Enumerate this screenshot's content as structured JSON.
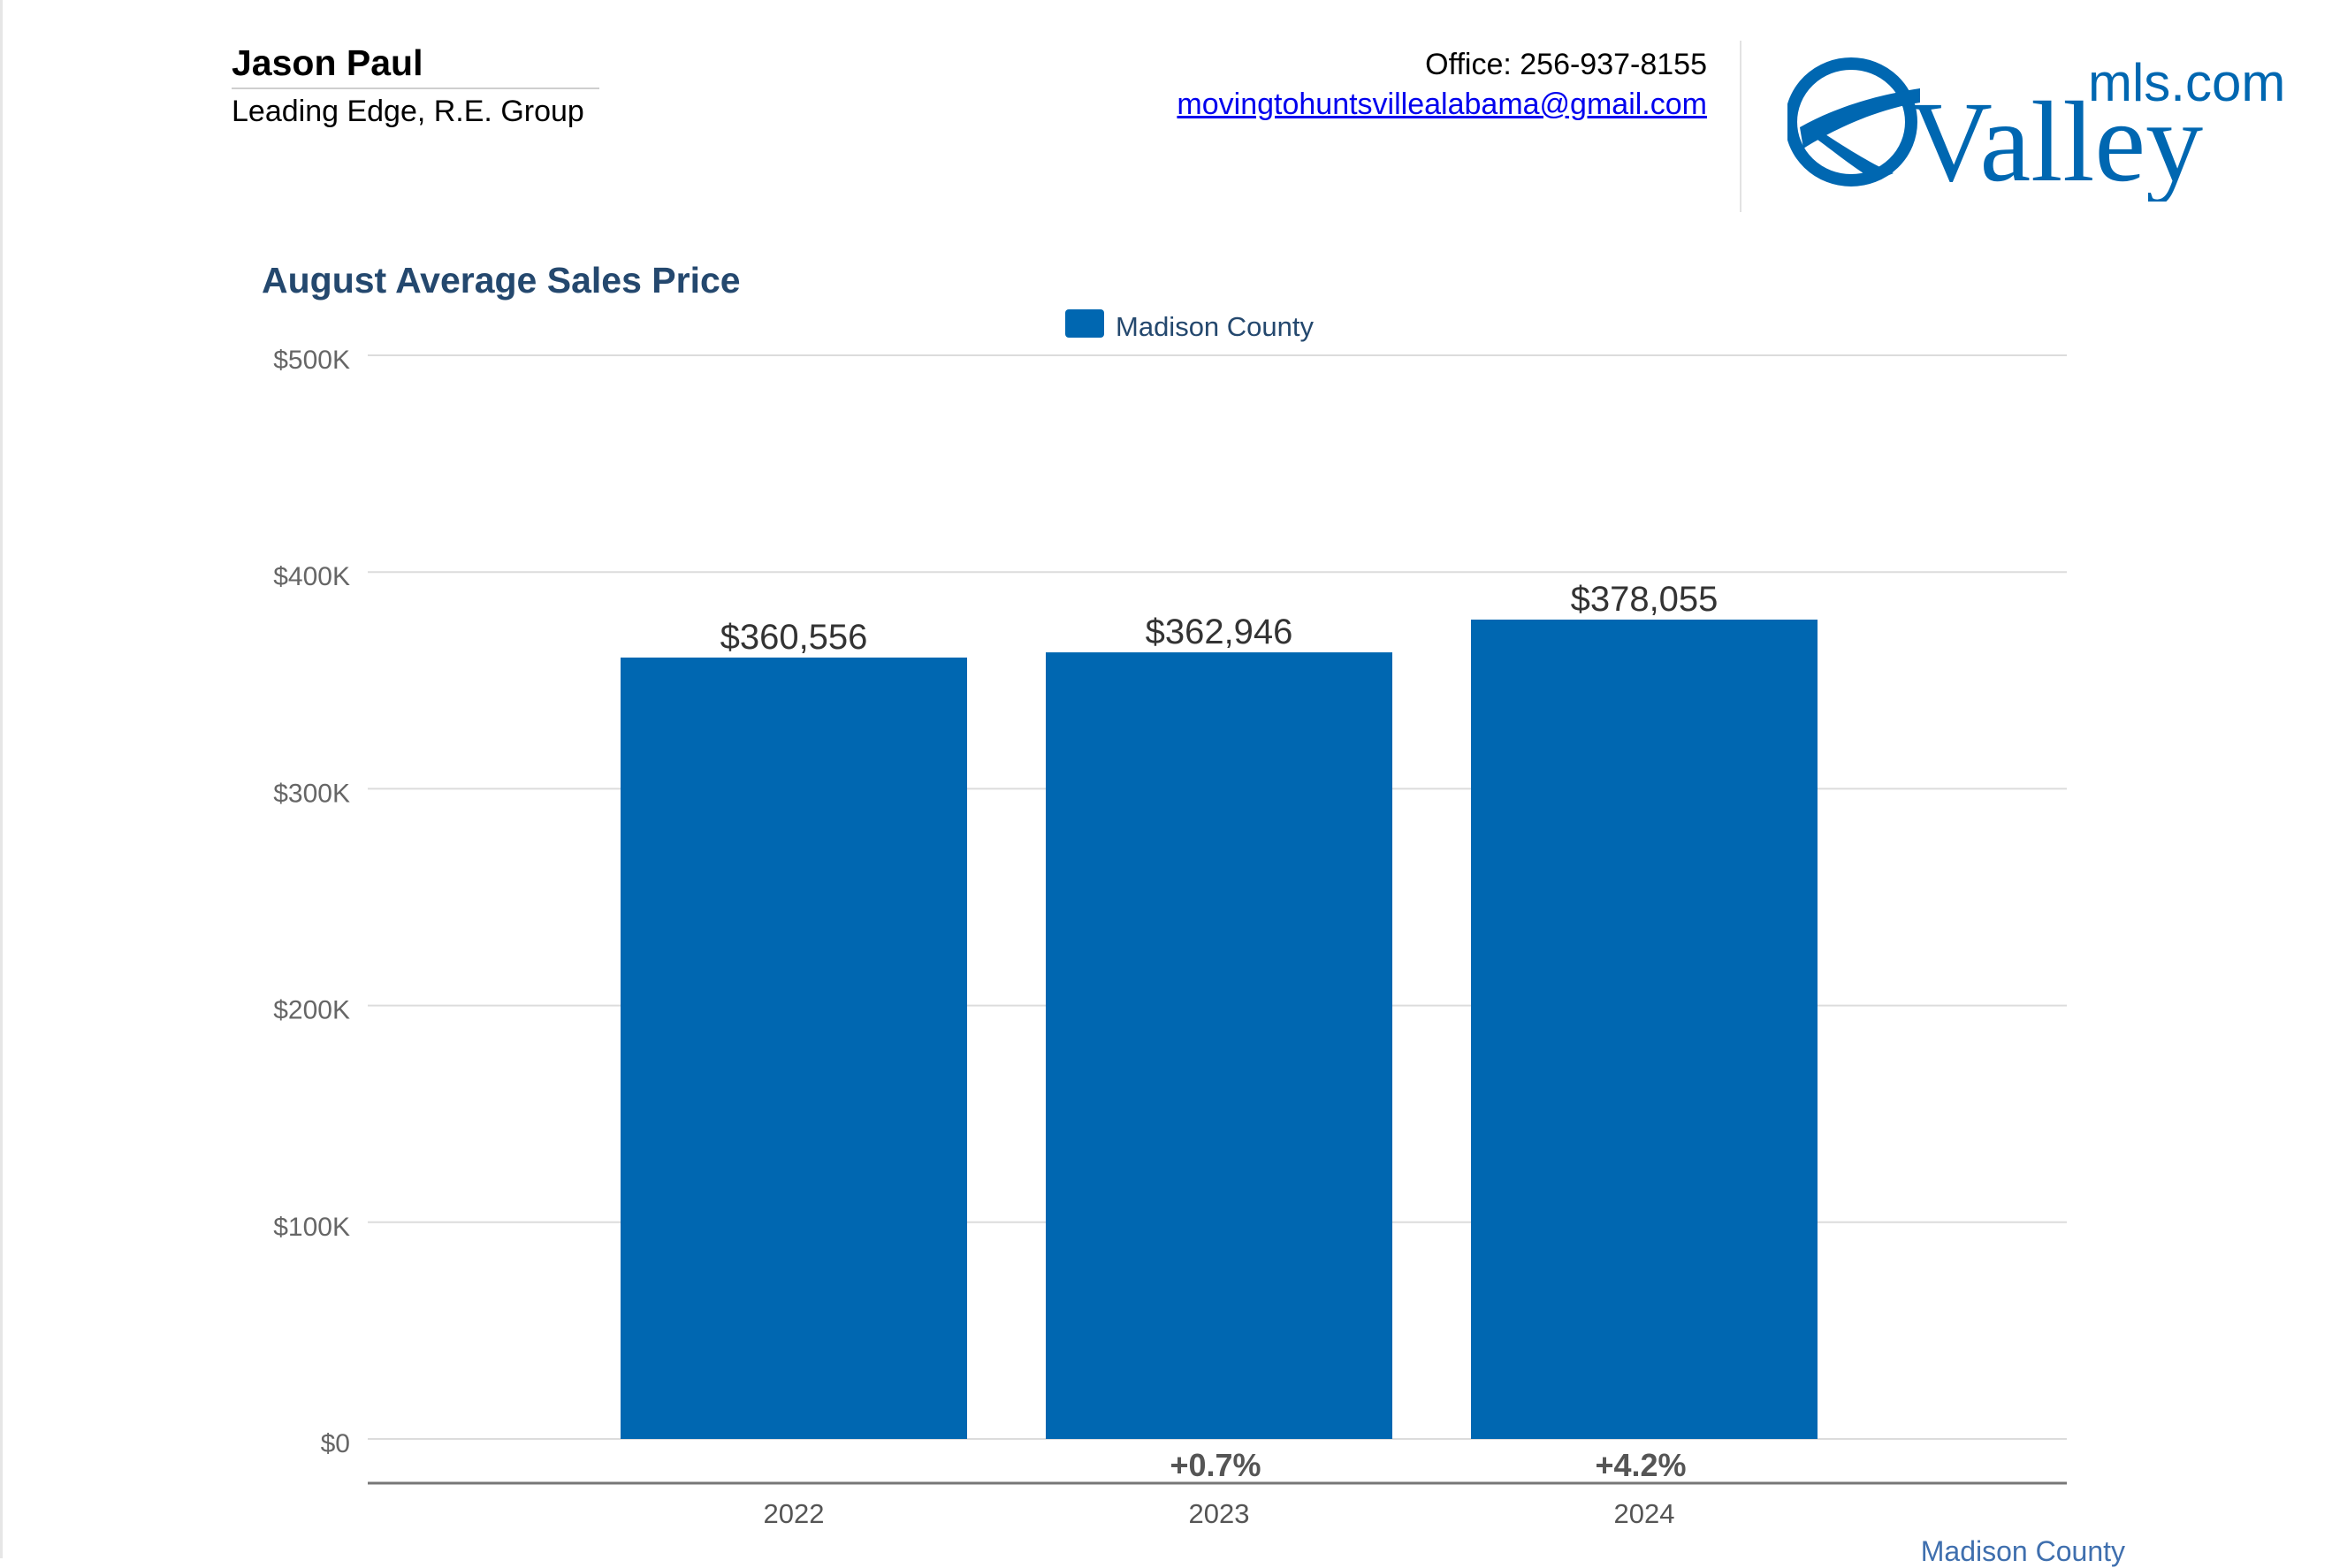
{
  "agent": {
    "name": "Jason Paul",
    "company": "Leading Edge, R.E. Group",
    "office": "Office: 256-937-8155",
    "email": "movingtohuntsvillealabama@gmail.com"
  },
  "logo": {
    "wordmark": "Valley",
    "suffix": "mls.com",
    "color": "#0067b1"
  },
  "footer": {
    "label": "Madison County"
  },
  "chart_data": {
    "type": "bar",
    "title": "August Average Sales Price",
    "xlabel": "",
    "ylabel": "",
    "categories": [
      "2022",
      "2023",
      "2024"
    ],
    "series": [
      {
        "name": "Madison County",
        "values": [
          360556,
          362946,
          378055
        ],
        "value_labels": [
          "$360,556",
          "$362,946",
          "$378,055"
        ],
        "color": "#0067b1"
      }
    ],
    "change_labels": [
      "",
      "+0.7%",
      "+4.2%"
    ],
    "ylim": [
      0,
      500000
    ],
    "yticks": [
      0,
      100000,
      200000,
      300000,
      400000,
      500000
    ],
    "ytick_labels": [
      "$0",
      "$100K",
      "$200K",
      "$300K",
      "$400K",
      "$500K"
    ],
    "grid": true,
    "legend": "top-center"
  }
}
